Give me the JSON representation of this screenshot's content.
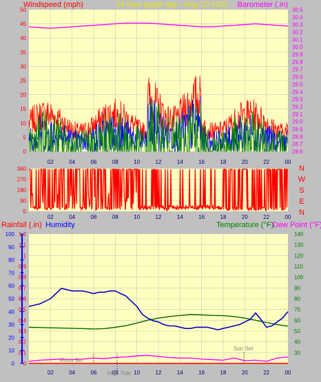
{
  "colors": {
    "page_bg": "#c0c0c0",
    "plot_bg": "#ffffc0",
    "grid": "#c8c8b8",
    "wind_gust": "#ff0000",
    "wind_avg": "#0000ff",
    "wind_low": "#008000",
    "barometer": "#ff00ff",
    "direction": "#ff0000",
    "rain": "#ff0000",
    "humidity": "#0000c8",
    "temperature": "#006400",
    "dewpoint": "#ff00ff",
    "x_ticks": "#000080",
    "rain_axis": "#ff0000",
    "humidity_axis": "#0000ff",
    "temp_axis": "#008000",
    "baro_axis": "#ff00ff"
  },
  "header": {
    "left": "Windspeed (mph)",
    "center": "24 hour graph day - May 10 2022",
    "right": "Barometer (.in)"
  },
  "bottom_header": {
    "rain": "Rainfall (.in)",
    "humidity": "Humidity",
    "temperature": "Temperature (°F)",
    "dewpoint": "Dew Point (°F)"
  },
  "direction_letters": [
    "N",
    "W",
    "S",
    "E",
    "N"
  ],
  "annotations": {
    "moon_set": "Moon Set",
    "sun_set": "Sun Set",
    "high_tide": "High Tide"
  },
  "chart_data": [
    {
      "type": "line",
      "title": "24 hour graph day - May 10 2022",
      "x_tick_labels": [
        "02",
        "04",
        "06",
        "08",
        "10",
        "12",
        "14",
        "16",
        "18",
        "20",
        "22",
        "00"
      ],
      "y_left_label": "Windspeed (mph)",
      "y_left_ticks": [
        "0",
        "5",
        "10",
        "15",
        "20",
        "25",
        "30",
        "35",
        "40",
        "45",
        "50"
      ],
      "y_left_range": [
        0,
        50
      ],
      "y_right_label": "Barometer (.in)",
      "y_right_ticks": [
        "28.6",
        "28.7",
        "28.8",
        "28.9",
        "29.0",
        "29.1",
        "29.2",
        "29.3",
        "29.4",
        "29.5",
        "29.6",
        "29.7",
        "29.8",
        "29.9",
        "30.0",
        "30.1",
        "30.2",
        "30.3",
        "30.4",
        "30.5"
      ],
      "y_right_range": [
        28.6,
        30.5
      ],
      "x_range_hours": [
        0,
        24
      ],
      "series": [
        {
          "name": "Barometer",
          "x": [
            0,
            1,
            2,
            3,
            4,
            5,
            6,
            7,
            8,
            9,
            10,
            11,
            12,
            13,
            14,
            15,
            16,
            17,
            18,
            19,
            20,
            21,
            22,
            23,
            24
          ],
          "values": [
            30.27,
            30.26,
            30.25,
            30.26,
            30.27,
            30.28,
            30.29,
            30.3,
            30.31,
            30.32,
            30.32,
            30.32,
            30.31,
            30.3,
            30.29,
            30.28,
            30.27,
            30.27,
            30.28,
            30.29,
            30.3,
            30.31,
            30.3,
            30.29,
            30.28
          ]
        }
      ]
    },
    {
      "type": "line",
      "x_tick_labels": [
        "02",
        "04",
        "06",
        "08",
        "10",
        "12",
        "14",
        "16",
        "18",
        "20",
        "22",
        "00"
      ],
      "y_left_ticks": [
        "0",
        "90",
        "180",
        "270",
        "360"
      ],
      "y_left_range": [
        0,
        360
      ],
      "x_range_hours": [
        0,
        24
      ],
      "series": [
        {
          "name": "Wind Direction"
        }
      ]
    },
    {
      "type": "line",
      "x_tick_labels": [
        "02",
        "04",
        "06",
        "08",
        "10",
        "12",
        "14",
        "16",
        "18",
        "20",
        "22",
        "00"
      ],
      "y_rain_ticks": [
        "0",
        "0.1",
        "0.2",
        "0.3",
        "0.4",
        "0.5",
        "0.6",
        "0.7",
        "0.8",
        "0.9",
        "1",
        "1.1",
        "1.2"
      ],
      "y_rain_range": [
        0,
        1.2
      ],
      "y_humidity_ticks": [
        "0",
        "10",
        "20",
        "30",
        "40",
        "50",
        "60",
        "70",
        "80",
        "90",
        "100"
      ],
      "y_humidity_range": [
        0,
        100
      ],
      "y_temp_ticks": [
        "30",
        "40",
        "50",
        "60",
        "70",
        "80",
        "90",
        "100",
        "110",
        "120",
        "130",
        "140"
      ],
      "y_temp_range": [
        20,
        140
      ],
      "x_range_hours": [
        0,
        24
      ],
      "series": [
        {
          "name": "Humidity",
          "x": [
            0,
            0.5,
            1,
            1.5,
            2,
            2.5,
            3,
            3.5,
            4,
            4.5,
            5,
            5.5,
            6,
            6.5,
            7,
            7.5,
            8,
            8.5,
            9,
            9.5,
            10,
            10.5,
            11,
            11.5,
            12,
            12.5,
            13,
            13.5,
            14,
            14.5,
            15,
            15.5,
            16,
            16.5,
            17,
            17.5,
            18,
            18.5,
            19,
            19.5,
            20,
            20.5,
            21,
            21.5,
            22,
            22.5,
            23,
            23.5,
            24
          ],
          "values": [
            44,
            45,
            46,
            48,
            50,
            54,
            58,
            57,
            56,
            56,
            56,
            55,
            54,
            55,
            55,
            56,
            56,
            54,
            52,
            48,
            44,
            38,
            35,
            33,
            32,
            30,
            29,
            29,
            28,
            27,
            27,
            28,
            28,
            28,
            27,
            26,
            27,
            28,
            29,
            30,
            32,
            34,
            39,
            34,
            28,
            29,
            32,
            35,
            40
          ]
        },
        {
          "name": "Temperature",
          "x": [
            0,
            1,
            2,
            3,
            4,
            5,
            6,
            7,
            8,
            9,
            10,
            11,
            12,
            13,
            14,
            15,
            16,
            17,
            18,
            19,
            20,
            21,
            22,
            23,
            24
          ],
          "values": [
            53.5,
            53.3,
            53,
            52.8,
            52.5,
            52.3,
            52,
            52.3,
            53.5,
            55,
            57.5,
            60,
            62,
            63.5,
            64.5,
            65.3,
            65,
            64.5,
            64.3,
            63.5,
            62,
            60,
            58,
            56,
            54.5
          ]
        },
        {
          "name": "Dew Point",
          "x": [
            0,
            1,
            2,
            3,
            4,
            5,
            6,
            7,
            8,
            9,
            10,
            11,
            12,
            13,
            14,
            15,
            16,
            17,
            18,
            19,
            20,
            21,
            22,
            23,
            24
          ],
          "values": [
            22,
            23,
            23.5,
            24,
            23.5,
            24,
            25,
            24.5,
            25.5,
            26,
            27,
            27.5,
            26.5,
            25.5,
            25,
            25,
            24,
            23.5,
            23,
            25,
            22.5,
            23,
            22,
            25,
            26
          ]
        },
        {
          "name": "Rainfall",
          "x": [
            0,
            24
          ],
          "values": [
            0,
            0
          ]
        }
      ]
    }
  ]
}
